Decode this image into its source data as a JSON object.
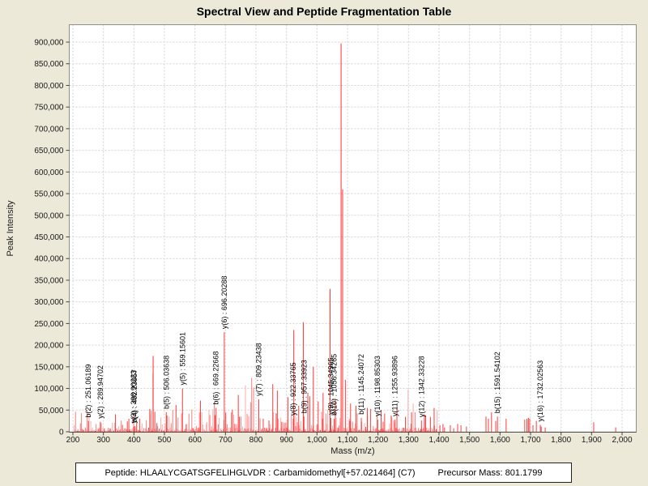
{
  "header": {
    "title": "Spectral View and Peptide Fragmentation Table"
  },
  "footer": {
    "peptide": "Peptide: HLAALYCGATSGFELIHGLVDR : Carbamidomethyl[+57.021464] (C7)",
    "precursor": "Precursor Mass: 801.1799"
  },
  "colors": {
    "background": "#ece9d8",
    "plot_background": "#ffffff",
    "plot_border": "#8f8f85",
    "axis_line": "#444444",
    "grid": "#d2d2d2",
    "axis_text": "#1a1a1a",
    "annotation_text": "#000000",
    "peak_strong": "#ff2e2e",
    "peak_labeled": "#ff3b3b",
    "peak_mid": "#ff7d7d",
    "peak_light": "#ffabab"
  },
  "chart_data": {
    "type": "bar",
    "subtype": "mass-spectrum",
    "title": "Spectral View and Peptide Fragmentation Table",
    "xlabel": "Mass (m/z)",
    "ylabel": "Peak Intensity",
    "xlim": [
      187,
      2045
    ],
    "ylim": [
      0,
      941000
    ],
    "grid": true,
    "legend": "none",
    "x_ticks": [
      200,
      300,
      400,
      500,
      600,
      700,
      800,
      900,
      1000,
      1100,
      1200,
      1300,
      1400,
      1500,
      1600,
      1700,
      1800,
      1900,
      2000
    ],
    "y_ticks": [
      0,
      50000,
      100000,
      150000,
      200000,
      250000,
      300000,
      350000,
      400000,
      450000,
      500000,
      550000,
      600000,
      650000,
      700000,
      750000,
      800000,
      850000,
      900000
    ],
    "labeled_ions": [
      {
        "ion": "b(2)",
        "mz": 251.06189,
        "intensity": 25000,
        "label": "b(2) : 251.06189"
      },
      {
        "ion": "y(2)",
        "mz": 289.94702,
        "intensity": 23000,
        "label": "y(2) : 289.94702"
      },
      {
        "ion": "y(3)",
        "mz": 398.90223,
        "intensity": 12000,
        "label": "y(3) : 398.90223"
      },
      {
        "ion": "b(4)",
        "mz": 402.23957,
        "intensity": 13000,
        "label": "b(4) : 402.23957"
      },
      {
        "ion": "b(5)",
        "mz": 506.03638,
        "intensity": 45000,
        "label": "b(5) : 506.03638"
      },
      {
        "ion": "y(5)",
        "mz": 559.15601,
        "intensity": 100000,
        "label": "y(5) : 559.15601"
      },
      {
        "ion": "b(6)",
        "mz": 669.22668,
        "intensity": 55000,
        "label": "b(6) : 669.22668"
      },
      {
        "ion": "y(6)",
        "mz": 696.20288,
        "intensity": 230000,
        "label": "y(6) : 696.20288"
      },
      {
        "ion": "y(7)",
        "mz": 809.23438,
        "intensity": 75000,
        "label": "y(7) : 809.23438"
      },
      {
        "ion": "y(8)",
        "mz": 922.33765,
        "intensity": 30000,
        "label": "y(8) : 922.33765"
      },
      {
        "ion": "b(9)",
        "mz": 957.33923,
        "intensity": 35000,
        "label": "b(9) : 957.33923"
      },
      {
        "ion": "y(9)",
        "mz": 1045.34965,
        "intensity": 32000,
        "label": "y(9) : 1045.34965"
      },
      {
        "ion": "b(10)",
        "mz": 1056.34265,
        "intensity": 30000,
        "label": "b(10) : 1056.34265"
      },
      {
        "ion": "b(11)",
        "mz": 1145.24072,
        "intensity": 32000,
        "label": "b(11) : 1145.24072"
      },
      {
        "ion": "y(10)",
        "mz": 1198.85303,
        "intensity": 28000,
        "label": "y(10) : 1198.85303"
      },
      {
        "ion": "y(11)",
        "mz": 1255.93896,
        "intensity": 28000,
        "label": "y(11) : 1255.93896"
      },
      {
        "ion": "y(12)",
        "mz": 1342.33228,
        "intensity": 26000,
        "label": "y(12) : 1342.33228"
      },
      {
        "ion": "b(15)",
        "mz": 1591.54102,
        "intensity": 35000,
        "label": "b(15) : 1591.54102"
      },
      {
        "ion": "y(16)",
        "mz": 1732.02563,
        "intensity": 16000,
        "label": "y(16) : 1732.02563"
      }
    ],
    "major_peaks": [
      [
        463,
        175000
      ],
      [
        538,
        62000
      ],
      [
        618,
        72000
      ],
      [
        742,
        85000
      ],
      [
        855,
        110000
      ],
      [
        870,
        95000
      ],
      [
        905,
        80000
      ],
      [
        924,
        235000
      ],
      [
        940,
        60000
      ],
      [
        955,
        253000
      ],
      [
        970,
        90000
      ],
      [
        988,
        150000
      ],
      [
        1004,
        70000
      ],
      [
        1020,
        90000
      ],
      [
        1043,
        330000
      ],
      [
        1060,
        75000
      ],
      [
        1079,
        897000
      ],
      [
        1084,
        560000
      ],
      [
        1093,
        120000
      ],
      [
        1110,
        65000
      ],
      [
        1128,
        60000
      ],
      [
        1165,
        55000
      ],
      [
        1210,
        50000
      ],
      [
        1262,
        55000
      ],
      [
        1310,
        45000
      ],
      [
        1352,
        40000
      ],
      [
        1384,
        55000
      ]
    ],
    "minor_peaks": [
      [
        1403,
        15000
      ],
      [
        1413,
        18000
      ],
      [
        1418,
        10000
      ],
      [
        1437,
        15000
      ],
      [
        1448,
        8000
      ],
      [
        1461,
        18000
      ],
      [
        1472,
        15000
      ],
      [
        1490,
        12000
      ],
      [
        1554,
        35000
      ],
      [
        1562,
        30000
      ],
      [
        1572,
        45000
      ],
      [
        1586,
        25000
      ],
      [
        1620,
        30000
      ],
      [
        1681,
        28000
      ],
      [
        1688,
        30000
      ],
      [
        1693,
        32000
      ],
      [
        1697,
        30000
      ],
      [
        1708,
        15000
      ],
      [
        1719,
        25000
      ],
      [
        1735,
        12000
      ],
      [
        1748,
        10000
      ],
      [
        1907,
        22000
      ],
      [
        1979,
        10000
      ]
    ],
    "noise": {
      "seed": 42,
      "dense": {
        "from": 204,
        "to": 1396,
        "min_step": 2.0,
        "max_step": 7.0,
        "base": 1500,
        "amp": 52000,
        "pow": 2.6,
        "spike_chance": 0.045,
        "spike_min": 60000,
        "spike_max": 135000,
        "spike_from": 430,
        "spike_to": 1360
      },
      "fringe": {
        "from": 204,
        "to": 1396,
        "min_step": 1.2,
        "max_step": 3.6,
        "base": 700,
        "amp": 9000,
        "pow": 2.0
      }
    }
  }
}
